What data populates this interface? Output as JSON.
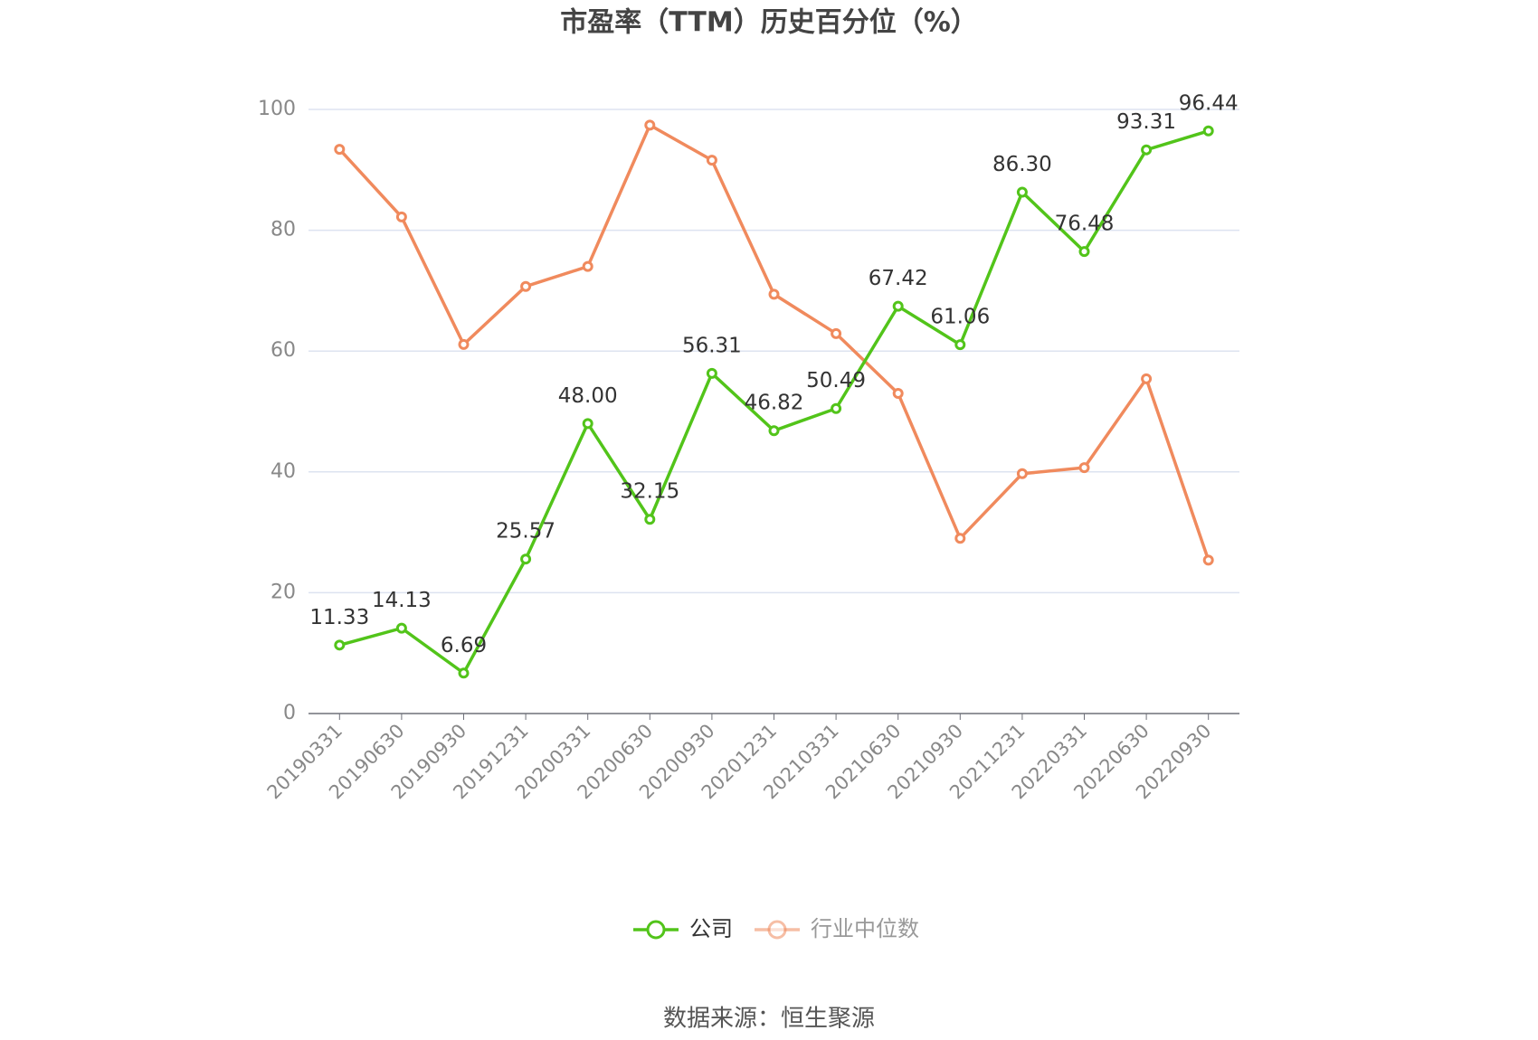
{
  "chart_data": {
    "type": "line",
    "title": "市盈率（TTM）历史百分位（%）",
    "categories": [
      "20190331",
      "20190630",
      "20190930",
      "20191231",
      "20200331",
      "20200630",
      "20200930",
      "20201231",
      "20210331",
      "20210630",
      "20210930",
      "20211231",
      "20220331",
      "20220630",
      "20220930"
    ],
    "series": [
      {
        "name": "公司",
        "color": "#52c41a",
        "values": [
          11.33,
          14.13,
          6.69,
          25.57,
          48,
          32.15,
          56.31,
          46.82,
          50.49,
          67.42,
          61.06,
          86.3,
          76.48,
          93.31,
          96.44
        ],
        "value_labels": [
          "11.33",
          "14.13",
          "6.69",
          "25.57",
          "48.00",
          "32.15",
          "56.31",
          "46.82",
          "50.49",
          "67.42",
          "61.06",
          "86.30",
          "76.48",
          "93.31",
          "96.44"
        ]
      },
      {
        "name": "行业中位数",
        "color": "#f08a5d",
        "values": [
          93.4,
          82.2,
          61.1,
          70.7,
          74.0,
          97.4,
          91.6,
          69.4,
          62.9,
          53.0,
          29.0,
          39.7,
          40.7,
          55.4,
          25.4
        ]
      }
    ],
    "ylim": [
      0,
      100
    ],
    "yticks": [
      0,
      20,
      40,
      60,
      80,
      100
    ],
    "grid": true,
    "source": "数据来源：恒生聚源"
  }
}
